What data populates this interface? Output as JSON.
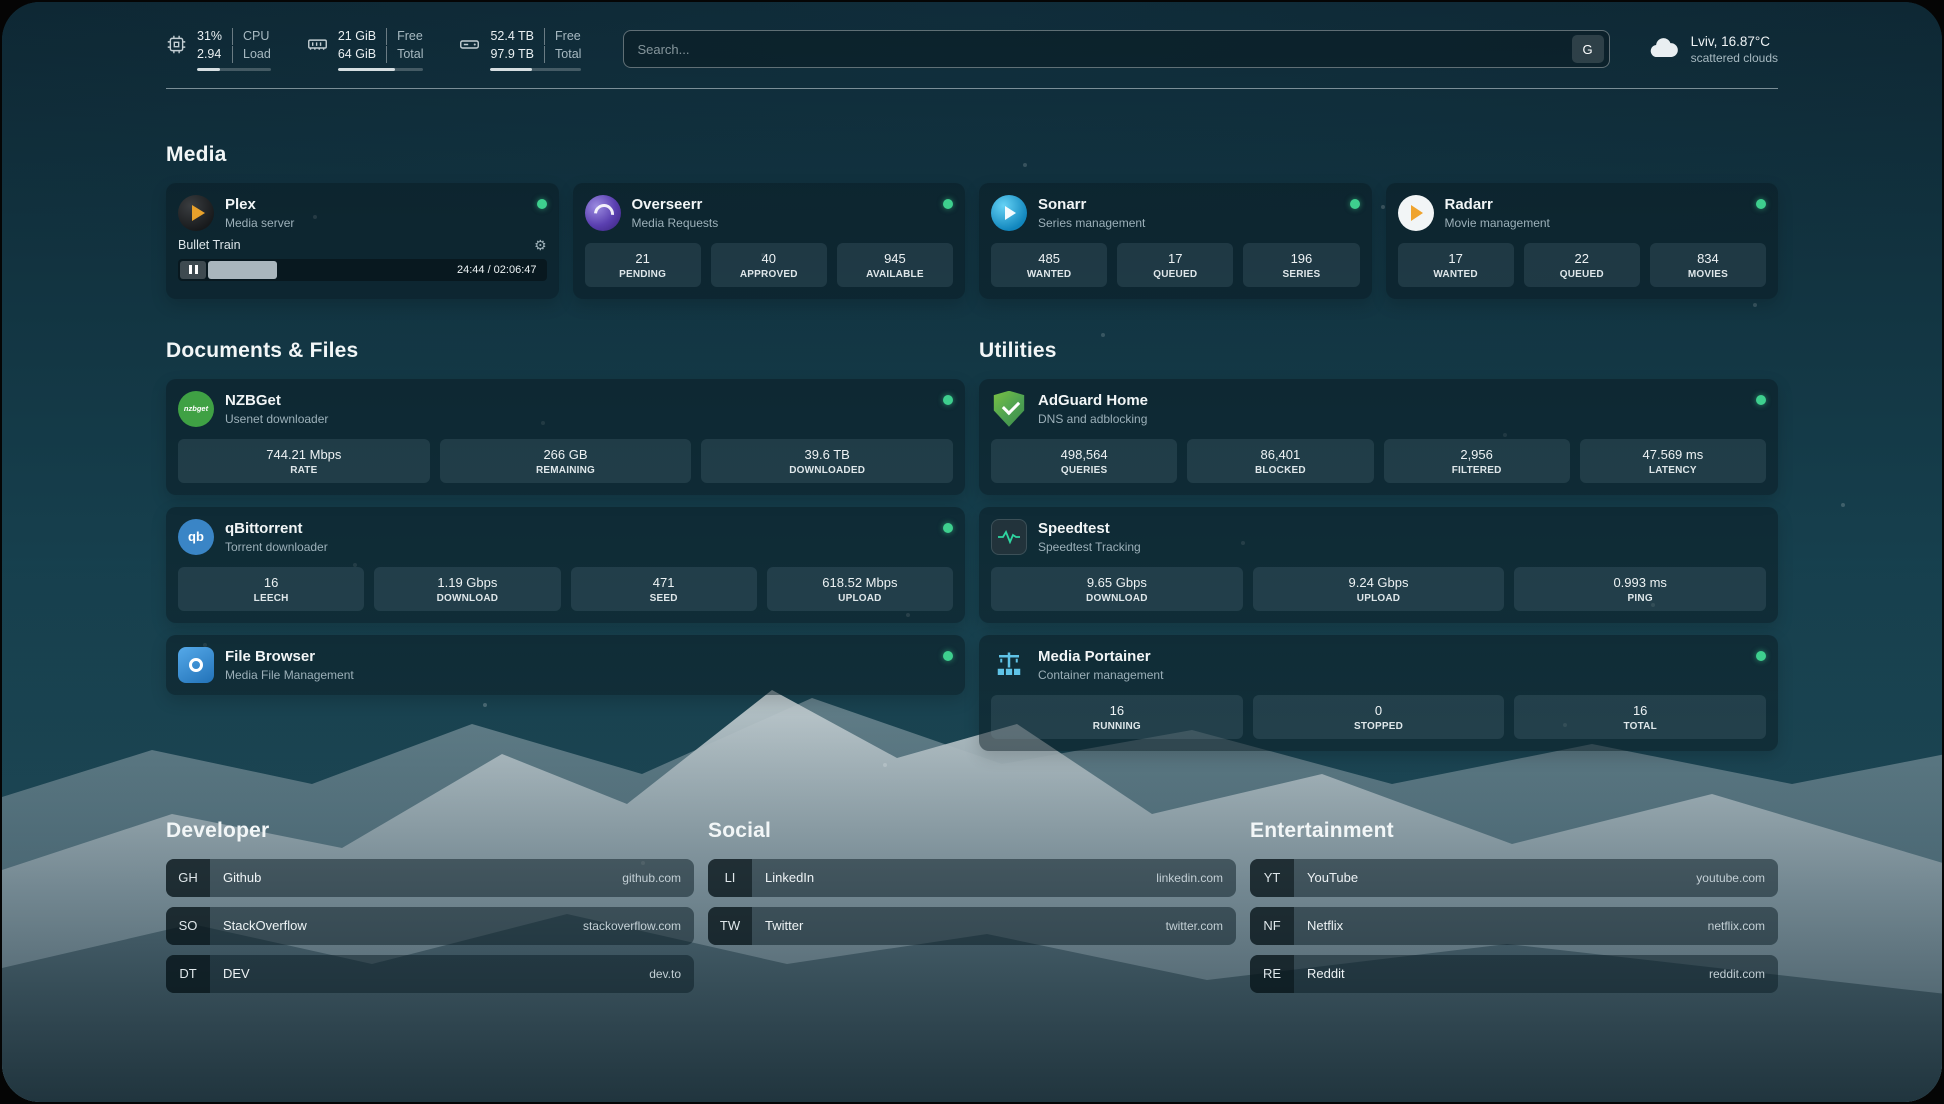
{
  "topbar": {
    "cpu": {
      "value_top": "31%",
      "label_top": "CPU",
      "value_bottom": "2.94",
      "label_bottom": "Load",
      "bar_percent": 31
    },
    "ram": {
      "value_top": "21 GiB",
      "label_top": "Free",
      "value_bottom": "64 GiB",
      "label_bottom": "Total",
      "bar_percent": 67
    },
    "disk": {
      "value_top": "52.4 TB",
      "label_top": "Free",
      "value_bottom": "97.9 TB",
      "label_bottom": "Total",
      "bar_percent": 46
    },
    "search": {
      "placeholder": "Search...",
      "provider": "G"
    },
    "weather": {
      "line1": "Lviv, 16.87°C",
      "line2": "scattered clouds"
    }
  },
  "icons": {
    "gear": "⚙",
    "nzbget_text": "nzbget",
    "qbittorrent_text": "qb"
  },
  "colors": {
    "status_green": "#3ecf8e",
    "accent_amber": "#e8a12b"
  },
  "sections": {
    "media": {
      "title": "Media",
      "plex": {
        "name": "Plex",
        "description": "Media server",
        "now_playing": {
          "title": "Bullet Train",
          "time": "24:44 / 02:06:47",
          "progress_percent": 19
        }
      },
      "overseerr": {
        "name": "Overseerr",
        "description": "Media Requests",
        "stats": [
          {
            "value": "21",
            "label": "PENDING"
          },
          {
            "value": "40",
            "label": "APPROVED"
          },
          {
            "value": "945",
            "label": "AVAILABLE"
          }
        ]
      },
      "sonarr": {
        "name": "Sonarr",
        "description": "Series management",
        "stats": [
          {
            "value": "485",
            "label": "WANTED"
          },
          {
            "value": "17",
            "label": "QUEUED"
          },
          {
            "value": "196",
            "label": "SERIES"
          }
        ]
      },
      "radarr": {
        "name": "Radarr",
        "description": "Movie management",
        "stats": [
          {
            "value": "17",
            "label": "WANTED"
          },
          {
            "value": "22",
            "label": "QUEUED"
          },
          {
            "value": "834",
            "label": "MOVIES"
          }
        ]
      }
    },
    "documents": {
      "title": "Documents & Files",
      "nzbget": {
        "name": "NZBGet",
        "description": "Usenet downloader",
        "stats": [
          {
            "value": "744.21 Mbps",
            "label": "RATE"
          },
          {
            "value": "266 GB",
            "label": "REMAINING"
          },
          {
            "value": "39.6 TB",
            "label": "DOWNLOADED"
          }
        ]
      },
      "qbittorrent": {
        "name": "qBittorrent",
        "description": "Torrent downloader",
        "stats": [
          {
            "value": "16",
            "label": "LEECH"
          },
          {
            "value": "1.19 Gbps",
            "label": "DOWNLOAD"
          },
          {
            "value": "471",
            "label": "SEED"
          },
          {
            "value": "618.52 Mbps",
            "label": "UPLOAD"
          }
        ]
      },
      "filebrowser": {
        "name": "File Browser",
        "description": "Media File Management"
      }
    },
    "utilities": {
      "title": "Utilities",
      "adguard": {
        "name": "AdGuard Home",
        "description": "DNS and adblocking",
        "stats": [
          {
            "value": "498,564",
            "label": "QUERIES"
          },
          {
            "value": "86,401",
            "label": "BLOCKED"
          },
          {
            "value": "2,956",
            "label": "FILTERED"
          },
          {
            "value": "47.569 ms",
            "label": "LATENCY"
          }
        ]
      },
      "speedtest": {
        "name": "Speedtest",
        "description": "Speedtest Tracking",
        "stats": [
          {
            "value": "9.65 Gbps",
            "label": "DOWNLOAD"
          },
          {
            "value": "9.24 Gbps",
            "label": "UPLOAD"
          },
          {
            "value": "0.993 ms",
            "label": "PING"
          }
        ]
      },
      "portainer": {
        "name": "Media Portainer",
        "description": "Container management",
        "stats": [
          {
            "value": "16",
            "label": "RUNNING"
          },
          {
            "value": "0",
            "label": "STOPPED"
          },
          {
            "value": "16",
            "label": "TOTAL"
          }
        ]
      }
    },
    "developer": {
      "title": "Developer",
      "bookmarks": [
        {
          "abbr": "GH",
          "name": "Github",
          "url": "github.com"
        },
        {
          "abbr": "SO",
          "name": "StackOverflow",
          "url": "stackoverflow.com"
        },
        {
          "abbr": "DT",
          "name": "DEV",
          "url": "dev.to"
        }
      ]
    },
    "social": {
      "title": "Social",
      "bookmarks": [
        {
          "abbr": "LI",
          "name": "LinkedIn",
          "url": "linkedin.com"
        },
        {
          "abbr": "TW",
          "name": "Twitter",
          "url": "twitter.com"
        }
      ]
    },
    "entertainment": {
      "title": "Entertainment",
      "bookmarks": [
        {
          "abbr": "YT",
          "name": "YouTube",
          "url": "youtube.com"
        },
        {
          "abbr": "NF",
          "name": "Netflix",
          "url": "netflix.com"
        },
        {
          "abbr": "RE",
          "name": "Reddit",
          "url": "reddit.com"
        }
      ]
    }
  }
}
